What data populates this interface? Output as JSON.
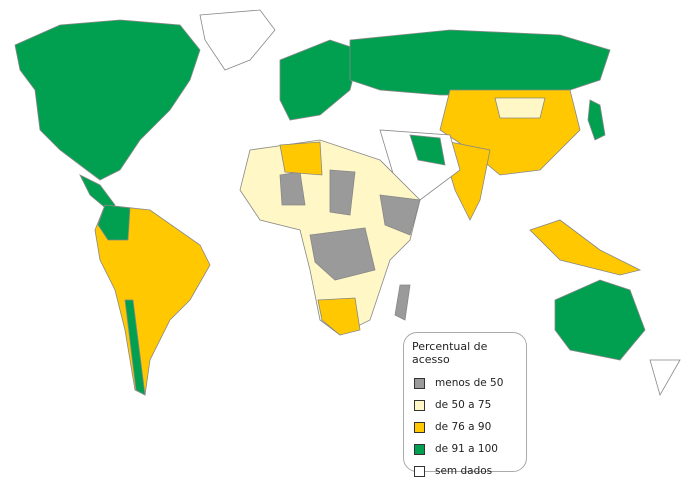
{
  "legend": {
    "title": "Percentual de acesso",
    "items": [
      {
        "label": "menos de 50",
        "color": "#9a9a9a"
      },
      {
        "label": "de 50 a 75",
        "color": "#fff8c6"
      },
      {
        "label": "de 76 a 90",
        "color": "#ffc800"
      },
      {
        "label": "de 91 a 100",
        "color": "#00a050"
      },
      {
        "label": "sem dados",
        "color": "#ffffff"
      }
    ]
  }
}
